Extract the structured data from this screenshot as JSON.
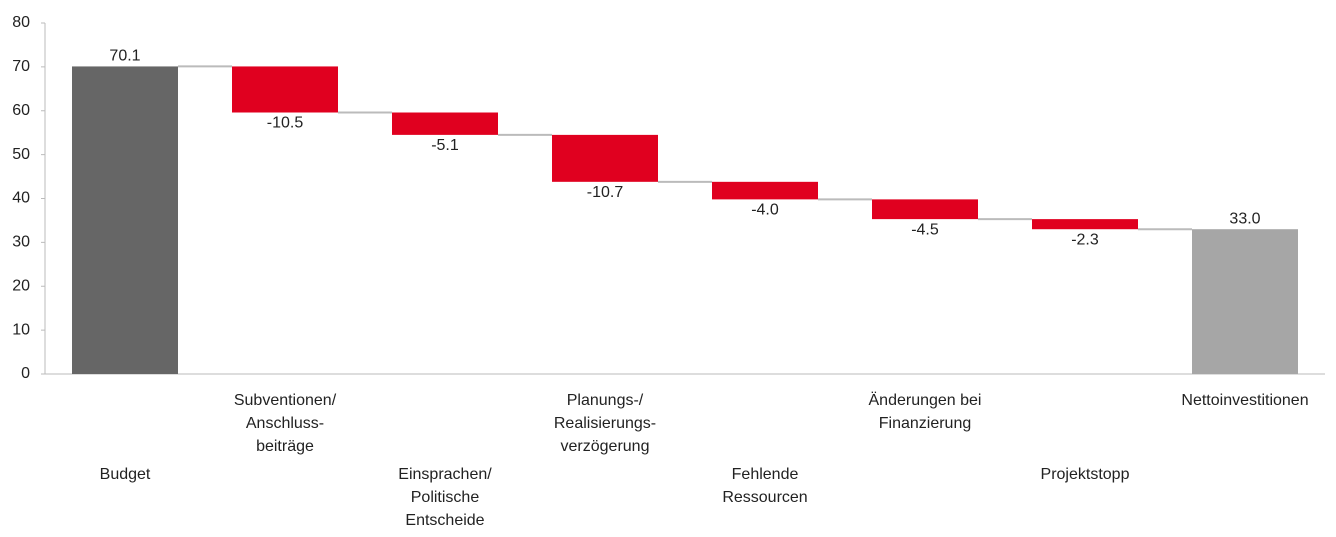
{
  "chart_data": {
    "type": "waterfall",
    "categories": [
      [
        "Budget"
      ],
      [
        "Subventionen/",
        "Anschluss-",
        "beiträge"
      ],
      [
        "Einsprachen/",
        "Politische",
        "Entscheide"
      ],
      [
        "Planungs-/",
        "Realisierungs-",
        "verzögerung"
      ],
      [
        "Fehlende",
        "Ressourcen"
      ],
      [
        "Änderungen bei",
        "Finanzierung"
      ],
      [
        "Projektstopp"
      ],
      [
        "Nettoinvestitionen"
      ]
    ],
    "kinds": [
      "total",
      "delta",
      "delta",
      "delta",
      "delta",
      "delta",
      "delta",
      "total"
    ],
    "values": [
      70.1,
      -10.5,
      -5.1,
      -10.7,
      -4.0,
      -4.5,
      -2.3,
      33.0
    ],
    "value_labels": [
      "70.1",
      "-10.5",
      "-5.1",
      "-10.7",
      "-4.0",
      "-4.5",
      "-2.3",
      "33.0"
    ],
    "colors": [
      "#666666",
      "#e0001f",
      "#e0001f",
      "#e0001f",
      "#e0001f",
      "#e0001f",
      "#e0001f",
      "#a6a6a6"
    ],
    "ylim": [
      0,
      80
    ],
    "yticks": [
      0,
      10,
      20,
      30,
      40,
      50,
      60,
      70,
      80
    ],
    "grid": false
  }
}
